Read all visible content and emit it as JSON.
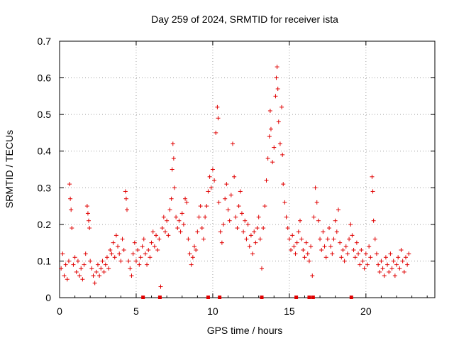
{
  "chart_data": {
    "type": "scatter",
    "title": "Day 259 of 2024, SRMTID for receiver ista",
    "xlabel": "GPS time / hours",
    "ylabel": "SRMTID / TECUs",
    "xlim": [
      0,
      24.5
    ],
    "ylim": [
      0,
      0.7
    ],
    "xticks": [
      0,
      5,
      10,
      15,
      20
    ],
    "xtick_labels": [
      "0",
      "5",
      "10",
      "15",
      "20"
    ],
    "yticks": [
      0,
      0.1,
      0.2,
      0.3,
      0.4,
      0.5,
      0.6,
      0.7
    ],
    "ytick_labels": [
      "0",
      "0.1",
      "0.2",
      "0.3",
      "0.4",
      "0.5",
      "0.6",
      "0.7"
    ],
    "grid": true,
    "marker": "+",
    "series_color": "#e00000",
    "series": [
      {
        "name": "SRMTID",
        "points": [
          [
            0.1,
            0.08
          ],
          [
            0.2,
            0.12
          ],
          [
            0.3,
            0.06
          ],
          [
            0.4,
            0.09
          ],
          [
            0.5,
            0.05
          ],
          [
            0.6,
            0.1
          ],
          [
            0.65,
            0.31
          ],
          [
            0.7,
            0.27
          ],
          [
            0.75,
            0.24
          ],
          [
            0.8,
            0.19
          ],
          [
            0.9,
            0.09
          ],
          [
            1.0,
            0.11
          ],
          [
            1.1,
            0.07
          ],
          [
            1.2,
            0.1
          ],
          [
            1.3,
            0.06
          ],
          [
            1.4,
            0.08
          ],
          [
            1.5,
            0.05
          ],
          [
            1.6,
            0.09
          ],
          [
            1.7,
            0.12
          ],
          [
            1.8,
            0.25
          ],
          [
            1.85,
            0.23
          ],
          [
            1.9,
            0.21
          ],
          [
            1.95,
            0.19
          ],
          [
            2.0,
            0.1
          ],
          [
            2.1,
            0.08
          ],
          [
            2.2,
            0.06
          ],
          [
            2.3,
            0.04
          ],
          [
            2.4,
            0.07
          ],
          [
            2.5,
            0.09
          ],
          [
            2.6,
            0.06
          ],
          [
            2.7,
            0.08
          ],
          [
            2.8,
            0.1
          ],
          [
            2.9,
            0.07
          ],
          [
            3.0,
            0.09
          ],
          [
            3.1,
            0.11
          ],
          [
            3.2,
            0.08
          ],
          [
            3.3,
            0.13
          ],
          [
            3.4,
            0.12
          ],
          [
            3.5,
            0.15
          ],
          [
            3.6,
            0.11
          ],
          [
            3.7,
            0.17
          ],
          [
            3.8,
            0.14
          ],
          [
            3.9,
            0.12
          ],
          [
            4.0,
            0.1
          ],
          [
            4.1,
            0.16
          ],
          [
            4.2,
            0.13
          ],
          [
            4.3,
            0.29
          ],
          [
            4.35,
            0.27
          ],
          [
            4.4,
            0.24
          ],
          [
            4.5,
            0.1
          ],
          [
            4.6,
            0.08
          ],
          [
            4.7,
            0.06
          ],
          [
            4.8,
            0.12
          ],
          [
            4.9,
            0.15
          ],
          [
            5.0,
            0.1
          ],
          [
            5.1,
            0.13
          ],
          [
            5.2,
            0.09
          ],
          [
            5.3,
            0.11
          ],
          [
            5.4,
            0.14
          ],
          [
            5.5,
            0.16
          ],
          [
            5.6,
            0.12
          ],
          [
            5.7,
            0.09
          ],
          [
            5.8,
            0.13
          ],
          [
            5.9,
            0.11
          ],
          [
            6.0,
            0.15
          ],
          [
            6.1,
            0.18
          ],
          [
            6.2,
            0.14
          ],
          [
            6.3,
            0.17
          ],
          [
            6.4,
            0.13
          ],
          [
            6.5,
            0.16
          ],
          [
            6.6,
            0.03
          ],
          [
            6.7,
            0.19
          ],
          [
            6.8,
            0.22
          ],
          [
            6.9,
            0.18
          ],
          [
            7.0,
            0.21
          ],
          [
            7.1,
            0.17
          ],
          [
            7.2,
            0.24
          ],
          [
            7.3,
            0.27
          ],
          [
            7.35,
            0.35
          ],
          [
            7.4,
            0.42
          ],
          [
            7.45,
            0.38
          ],
          [
            7.5,
            0.3
          ],
          [
            7.6,
            0.22
          ],
          [
            7.7,
            0.19
          ],
          [
            7.8,
            0.21
          ],
          [
            7.9,
            0.18
          ],
          [
            8.0,
            0.23
          ],
          [
            8.1,
            0.2
          ],
          [
            8.2,
            0.27
          ],
          [
            8.3,
            0.26
          ],
          [
            8.4,
            0.16
          ],
          [
            8.5,
            0.12
          ],
          [
            8.6,
            0.09
          ],
          [
            8.7,
            0.11
          ],
          [
            8.8,
            0.14
          ],
          [
            8.9,
            0.13
          ],
          [
            9.0,
            0.18
          ],
          [
            9.1,
            0.22
          ],
          [
            9.2,
            0.25
          ],
          [
            9.3,
            0.19
          ],
          [
            9.4,
            0.16
          ],
          [
            9.5,
            0.22
          ],
          [
            9.6,
            0.25
          ],
          [
            9.7,
            0.29
          ],
          [
            9.8,
            0.33
          ],
          [
            9.9,
            0.3
          ],
          [
            10.0,
            0.35
          ],
          [
            10.1,
            0.32
          ],
          [
            10.2,
            0.45
          ],
          [
            10.3,
            0.52
          ],
          [
            10.35,
            0.49
          ],
          [
            10.4,
            0.26
          ],
          [
            10.5,
            0.18
          ],
          [
            10.6,
            0.15
          ],
          [
            10.7,
            0.2
          ],
          [
            10.8,
            0.27
          ],
          [
            10.9,
            0.31
          ],
          [
            11.0,
            0.24
          ],
          [
            11.1,
            0.21
          ],
          [
            11.2,
            0.28
          ],
          [
            11.3,
            0.42
          ],
          [
            11.4,
            0.33
          ],
          [
            11.5,
            0.22
          ],
          [
            11.6,
            0.19
          ],
          [
            11.7,
            0.25
          ],
          [
            11.8,
            0.29
          ],
          [
            11.9,
            0.23
          ],
          [
            12.0,
            0.18
          ],
          [
            12.1,
            0.21
          ],
          [
            12.2,
            0.16
          ],
          [
            12.3,
            0.2
          ],
          [
            12.4,
            0.14
          ],
          [
            12.5,
            0.17
          ],
          [
            12.6,
            0.12
          ],
          [
            12.7,
            0.18
          ],
          [
            12.8,
            0.15
          ],
          [
            12.9,
            0.19
          ],
          [
            13.0,
            0.22
          ],
          [
            13.1,
            0.16
          ],
          [
            13.2,
            0.08
          ],
          [
            13.3,
            0.19
          ],
          [
            13.4,
            0.25
          ],
          [
            13.5,
            0.32
          ],
          [
            13.6,
            0.38
          ],
          [
            13.7,
            0.44
          ],
          [
            13.75,
            0.51
          ],
          [
            13.8,
            0.46
          ],
          [
            13.9,
            0.37
          ],
          [
            14.0,
            0.41
          ],
          [
            14.1,
            0.55
          ],
          [
            14.15,
            0.6
          ],
          [
            14.2,
            0.63
          ],
          [
            14.25,
            0.57
          ],
          [
            14.3,
            0.48
          ],
          [
            14.4,
            0.42
          ],
          [
            14.5,
            0.52
          ],
          [
            14.55,
            0.39
          ],
          [
            14.6,
            0.31
          ],
          [
            14.7,
            0.26
          ],
          [
            14.8,
            0.22
          ],
          [
            14.9,
            0.19
          ],
          [
            15.0,
            0.16
          ],
          [
            15.1,
            0.13
          ],
          [
            15.2,
            0.17
          ],
          [
            15.3,
            0.14
          ],
          [
            15.4,
            0.12
          ],
          [
            15.5,
            0.15
          ],
          [
            15.6,
            0.18
          ],
          [
            15.7,
            0.21
          ],
          [
            15.8,
            0.16
          ],
          [
            15.9,
            0.13
          ],
          [
            16.0,
            0.11
          ],
          [
            16.1,
            0.15
          ],
          [
            16.2,
            0.12
          ],
          [
            16.3,
            0.1
          ],
          [
            16.4,
            0.14
          ],
          [
            16.5,
            0.06
          ],
          [
            16.6,
            0.22
          ],
          [
            16.7,
            0.3
          ],
          [
            16.8,
            0.26
          ],
          [
            16.9,
            0.21
          ],
          [
            17.0,
            0.16
          ],
          [
            17.1,
            0.13
          ],
          [
            17.2,
            0.18
          ],
          [
            17.3,
            0.14
          ],
          [
            17.4,
            0.11
          ],
          [
            17.5,
            0.16
          ],
          [
            17.6,
            0.19
          ],
          [
            17.7,
            0.14
          ],
          [
            17.8,
            0.12
          ],
          [
            17.9,
            0.16
          ],
          [
            18.0,
            0.21
          ],
          [
            18.1,
            0.18
          ],
          [
            18.2,
            0.24
          ],
          [
            18.3,
            0.15
          ],
          [
            18.4,
            0.11
          ],
          [
            18.5,
            0.13
          ],
          [
            18.6,
            0.1
          ],
          [
            18.7,
            0.14
          ],
          [
            18.8,
            0.12
          ],
          [
            18.9,
            0.16
          ],
          [
            19.0,
            0.2
          ],
          [
            19.1,
            0.17
          ],
          [
            19.2,
            0.13
          ],
          [
            19.3,
            0.11
          ],
          [
            19.4,
            0.15
          ],
          [
            19.5,
            0.12
          ],
          [
            19.6,
            0.09
          ],
          [
            19.7,
            0.13
          ],
          [
            19.8,
            0.1
          ],
          [
            19.9,
            0.08
          ],
          [
            20.0,
            0.12
          ],
          [
            20.1,
            0.09
          ],
          [
            20.2,
            0.14
          ],
          [
            20.3,
            0.11
          ],
          [
            20.4,
            0.33
          ],
          [
            20.45,
            0.29
          ],
          [
            20.5,
            0.21
          ],
          [
            20.6,
            0.16
          ],
          [
            20.7,
            0.12
          ],
          [
            20.8,
            0.09
          ],
          [
            20.9,
            0.07
          ],
          [
            21.0,
            0.1
          ],
          [
            21.1,
            0.08
          ],
          [
            21.2,
            0.06
          ],
          [
            21.3,
            0.11
          ],
          [
            21.4,
            0.09
          ],
          [
            21.5,
            0.07
          ],
          [
            21.6,
            0.12
          ],
          [
            21.7,
            0.08
          ],
          [
            21.8,
            0.1
          ],
          [
            21.9,
            0.06
          ],
          [
            22.0,
            0.09
          ],
          [
            22.1,
            0.11
          ],
          [
            22.2,
            0.08
          ],
          [
            22.3,
            0.13
          ],
          [
            22.4,
            0.1
          ],
          [
            22.5,
            0.07
          ],
          [
            22.6,
            0.11
          ],
          [
            22.7,
            0.09
          ],
          [
            22.8,
            0.12
          ]
        ]
      }
    ],
    "gap_markers_x": [
      5.45,
      6.55,
      9.7,
      10.45,
      13.2,
      15.45,
      16.3,
      16.55,
      19.05
    ]
  }
}
